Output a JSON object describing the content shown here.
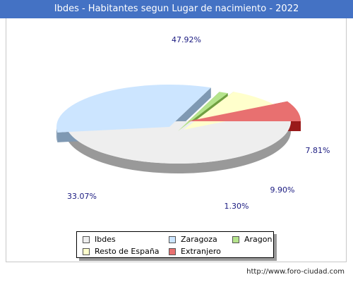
{
  "header": {
    "title": "Ibdes - Habitantes segun Lugar de nacimiento - 2022"
  },
  "chart_data": {
    "type": "pie",
    "title": "Ibdes - Habitantes segun Lugar de nacimiento - 2022",
    "slices": [
      {
        "label": "Ibdes",
        "value": 47.92,
        "value_label": "47.92%",
        "color": "#eeeeee",
        "side_color": "#999999"
      },
      {
        "label": "Zaragoza",
        "value": 33.07,
        "value_label": "33.07%",
        "color": "#cce5ff",
        "side_color": "#7f99b3"
      },
      {
        "label": "Aragon",
        "value": 1.3,
        "value_label": "1.30%",
        "color": "#b5e48c",
        "side_color": "#70a040"
      },
      {
        "label": "Resto de España",
        "value": 9.9,
        "value_label": "9.90%",
        "color": "#ffffcc",
        "side_color": "#aaaa77"
      },
      {
        "label": "Extranjero",
        "value": 7.81,
        "value_label": "7.81%",
        "color": "#e87070",
        "side_color": "#991a1a"
      }
    ],
    "legend_position": "bottom"
  },
  "footer": {
    "url": "http://www.foro-ciudad.com"
  }
}
